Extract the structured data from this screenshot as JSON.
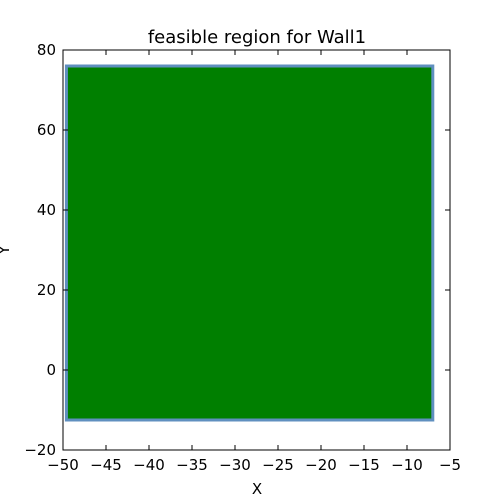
{
  "chart_data": {
    "type": "area",
    "title": "feasible region for Wall1",
    "xlabel": "X",
    "ylabel": "Y",
    "xlim": [
      -50,
      -5
    ],
    "ylim": [
      -20,
      80
    ],
    "x_ticks": [
      "−50",
      "−45",
      "−40",
      "−35",
      "−30",
      "−25",
      "−20",
      "−15",
      "−10",
      "−5"
    ],
    "y_ticks": [
      "−20",
      "0",
      "20",
      "40",
      "60",
      "80"
    ],
    "grid": false,
    "region": {
      "x": [
        -49.6,
        -7.0,
        -7.0,
        -49.6,
        -49.6
      ],
      "y": [
        -12.5,
        -12.5,
        76.0,
        76.0,
        -12.5
      ],
      "fill_color": "#007f00",
      "edge_color": "#5f8fbf"
    }
  }
}
